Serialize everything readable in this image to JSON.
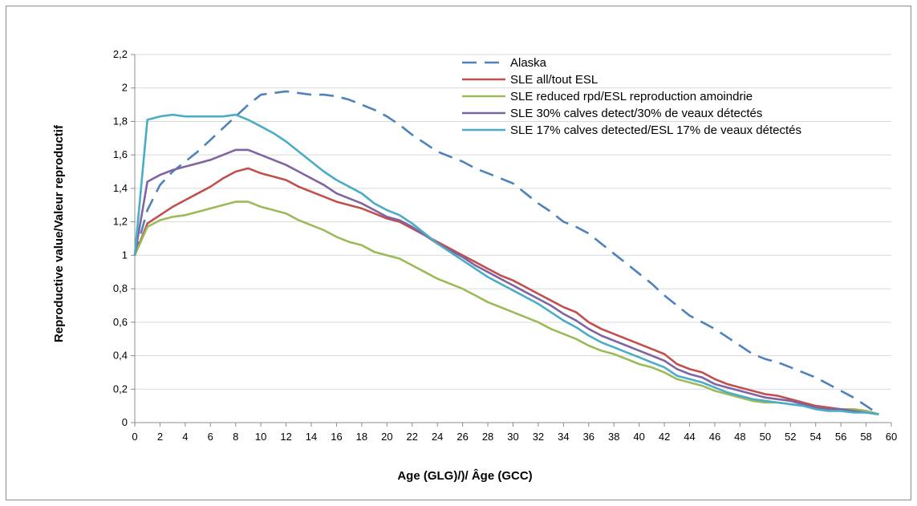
{
  "chart_data": {
    "type": "line",
    "xlabel": "Age (GLG)/)/ Âge (GCC)",
    "ylabel": "Reproductive value/Valeur reproductif",
    "xlim": [
      0,
      60
    ],
    "ylim": [
      0,
      2.2
    ],
    "xticks": [
      "0",
      "2",
      "4",
      "6",
      "8",
      "10",
      "12",
      "14",
      "16",
      "18",
      "20",
      "22",
      "24",
      "26",
      "28",
      "30",
      "32",
      "34",
      "36",
      "38",
      "40",
      "42",
      "44",
      "46",
      "48",
      "50",
      "52",
      "54",
      "56",
      "58",
      "60"
    ],
    "yticks": [
      "0",
      "0,2",
      "0,4",
      "0,6",
      "0,8",
      "1",
      "1,2",
      "1,4",
      "1,6",
      "1,8",
      "2",
      "2,2"
    ],
    "grid": "horizontal",
    "legend_position": "top-right",
    "series": [
      {
        "name": "Alaska",
        "color": "#4f81bd",
        "dash": "dashed",
        "x": [
          0,
          1,
          2,
          3,
          4,
          5,
          6,
          7,
          8,
          9,
          10,
          11,
          12,
          13,
          14,
          15,
          16,
          17,
          18,
          19,
          20,
          21,
          22,
          23,
          24,
          25,
          26,
          27,
          28,
          29,
          30,
          31,
          32,
          33,
          34,
          35,
          36,
          37,
          38,
          39,
          40,
          41,
          42,
          43,
          44,
          45,
          46,
          47,
          48,
          49,
          50,
          51,
          52,
          53,
          54,
          55,
          56,
          57,
          58,
          59
        ],
        "y": [
          1.0,
          1.27,
          1.42,
          1.5,
          1.56,
          1.62,
          1.69,
          1.76,
          1.83,
          1.9,
          1.96,
          1.97,
          1.98,
          1.97,
          1.96,
          1.96,
          1.95,
          1.93,
          1.9,
          1.87,
          1.83,
          1.78,
          1.72,
          1.67,
          1.62,
          1.59,
          1.56,
          1.52,
          1.49,
          1.46,
          1.43,
          1.37,
          1.31,
          1.26,
          1.2,
          1.17,
          1.13,
          1.07,
          1.01,
          0.95,
          0.89,
          0.83,
          0.76,
          0.7,
          0.64,
          0.6,
          0.56,
          0.51,
          0.46,
          0.41,
          0.38,
          0.36,
          0.33,
          0.3,
          0.27,
          0.23,
          0.19,
          0.15,
          0.1,
          0.05
        ]
      },
      {
        "name": "SLE all/tout ESL",
        "color": "#c0504d",
        "dash": "solid",
        "x": [
          0,
          1,
          2,
          3,
          4,
          5,
          6,
          7,
          8,
          9,
          10,
          11,
          12,
          13,
          14,
          15,
          16,
          17,
          18,
          19,
          20,
          21,
          22,
          23,
          24,
          25,
          26,
          27,
          28,
          29,
          30,
          31,
          32,
          33,
          34,
          35,
          36,
          37,
          38,
          39,
          40,
          41,
          42,
          43,
          44,
          45,
          46,
          47,
          48,
          49,
          50,
          51,
          52,
          53,
          54,
          55,
          56,
          57,
          58,
          59
        ],
        "y": [
          1.0,
          1.19,
          1.24,
          1.29,
          1.33,
          1.37,
          1.41,
          1.46,
          1.5,
          1.52,
          1.49,
          1.47,
          1.45,
          1.41,
          1.38,
          1.35,
          1.32,
          1.3,
          1.28,
          1.25,
          1.22,
          1.2,
          1.16,
          1.12,
          1.08,
          1.04,
          1.0,
          0.96,
          0.92,
          0.88,
          0.85,
          0.81,
          0.77,
          0.73,
          0.69,
          0.66,
          0.6,
          0.56,
          0.53,
          0.5,
          0.47,
          0.44,
          0.41,
          0.35,
          0.32,
          0.3,
          0.26,
          0.23,
          0.21,
          0.19,
          0.17,
          0.16,
          0.14,
          0.12,
          0.1,
          0.09,
          0.08,
          0.08,
          0.07,
          0.05
        ]
      },
      {
        "name": "SLE reduced rpd/ESL reproduction amoindrie",
        "color": "#9bbb59",
        "dash": "solid",
        "x": [
          0,
          1,
          2,
          3,
          4,
          5,
          6,
          7,
          8,
          9,
          10,
          11,
          12,
          13,
          14,
          15,
          16,
          17,
          18,
          19,
          20,
          21,
          22,
          23,
          24,
          25,
          26,
          27,
          28,
          29,
          30,
          31,
          32,
          33,
          34,
          35,
          36,
          37,
          38,
          39,
          40,
          41,
          42,
          43,
          44,
          45,
          46,
          47,
          48,
          49,
          50,
          51,
          52,
          53,
          54,
          55,
          56,
          57,
          58,
          59
        ],
        "y": [
          1.0,
          1.17,
          1.21,
          1.23,
          1.24,
          1.26,
          1.28,
          1.3,
          1.32,
          1.32,
          1.29,
          1.27,
          1.25,
          1.21,
          1.18,
          1.15,
          1.11,
          1.08,
          1.06,
          1.02,
          1.0,
          0.98,
          0.94,
          0.9,
          0.86,
          0.83,
          0.8,
          0.76,
          0.72,
          0.69,
          0.66,
          0.63,
          0.6,
          0.56,
          0.53,
          0.5,
          0.46,
          0.43,
          0.41,
          0.38,
          0.35,
          0.33,
          0.3,
          0.26,
          0.24,
          0.22,
          0.19,
          0.17,
          0.15,
          0.13,
          0.12,
          0.12,
          0.11,
          0.1,
          0.09,
          0.08,
          0.08,
          0.08,
          0.07,
          0.05
        ]
      },
      {
        "name": "SLE 30% calves detect/30% de veaux détectés",
        "color": "#8064a2",
        "dash": "solid",
        "x": [
          0,
          1,
          2,
          3,
          4,
          5,
          6,
          7,
          8,
          9,
          10,
          11,
          12,
          13,
          14,
          15,
          16,
          17,
          18,
          19,
          20,
          21,
          22,
          23,
          24,
          25,
          26,
          27,
          28,
          29,
          30,
          31,
          32,
          33,
          34,
          35,
          36,
          37,
          38,
          39,
          40,
          41,
          42,
          43,
          44,
          45,
          46,
          47,
          48,
          49,
          50,
          51,
          52,
          53,
          54,
          55,
          56,
          57,
          58,
          59
        ],
        "y": [
          1.0,
          1.44,
          1.48,
          1.51,
          1.53,
          1.55,
          1.57,
          1.6,
          1.63,
          1.63,
          1.6,
          1.57,
          1.54,
          1.5,
          1.46,
          1.42,
          1.37,
          1.34,
          1.31,
          1.27,
          1.23,
          1.21,
          1.17,
          1.12,
          1.07,
          1.03,
          0.99,
          0.94,
          0.9,
          0.86,
          0.82,
          0.78,
          0.74,
          0.7,
          0.65,
          0.61,
          0.56,
          0.52,
          0.49,
          0.46,
          0.43,
          0.4,
          0.37,
          0.32,
          0.29,
          0.27,
          0.23,
          0.21,
          0.19,
          0.17,
          0.15,
          0.14,
          0.13,
          0.11,
          0.09,
          0.08,
          0.08,
          0.07,
          0.06,
          0.05
        ]
      },
      {
        "name": "SLE 17% calves detected/ESL 17% de veaux détectés",
        "color": "#4bacc6",
        "dash": "solid",
        "x": [
          0,
          1,
          2,
          3,
          4,
          5,
          6,
          7,
          8,
          9,
          10,
          11,
          12,
          13,
          14,
          15,
          16,
          17,
          18,
          19,
          20,
          21,
          22,
          23,
          24,
          25,
          26,
          27,
          28,
          29,
          30,
          31,
          32,
          33,
          34,
          35,
          36,
          37,
          38,
          39,
          40,
          41,
          42,
          43,
          44,
          45,
          46,
          47,
          48,
          49,
          50,
          51,
          52,
          53,
          54,
          55,
          56,
          57,
          58,
          59
        ],
        "y": [
          1.0,
          1.81,
          1.83,
          1.84,
          1.83,
          1.83,
          1.83,
          1.83,
          1.84,
          1.81,
          1.77,
          1.73,
          1.68,
          1.62,
          1.56,
          1.5,
          1.45,
          1.41,
          1.37,
          1.31,
          1.27,
          1.24,
          1.19,
          1.13,
          1.07,
          1.02,
          0.97,
          0.92,
          0.87,
          0.83,
          0.79,
          0.75,
          0.71,
          0.66,
          0.61,
          0.57,
          0.52,
          0.48,
          0.45,
          0.42,
          0.39,
          0.36,
          0.33,
          0.28,
          0.26,
          0.24,
          0.21,
          0.18,
          0.16,
          0.14,
          0.13,
          0.12,
          0.11,
          0.1,
          0.08,
          0.07,
          0.07,
          0.06,
          0.06,
          0.05
        ]
      }
    ]
  }
}
